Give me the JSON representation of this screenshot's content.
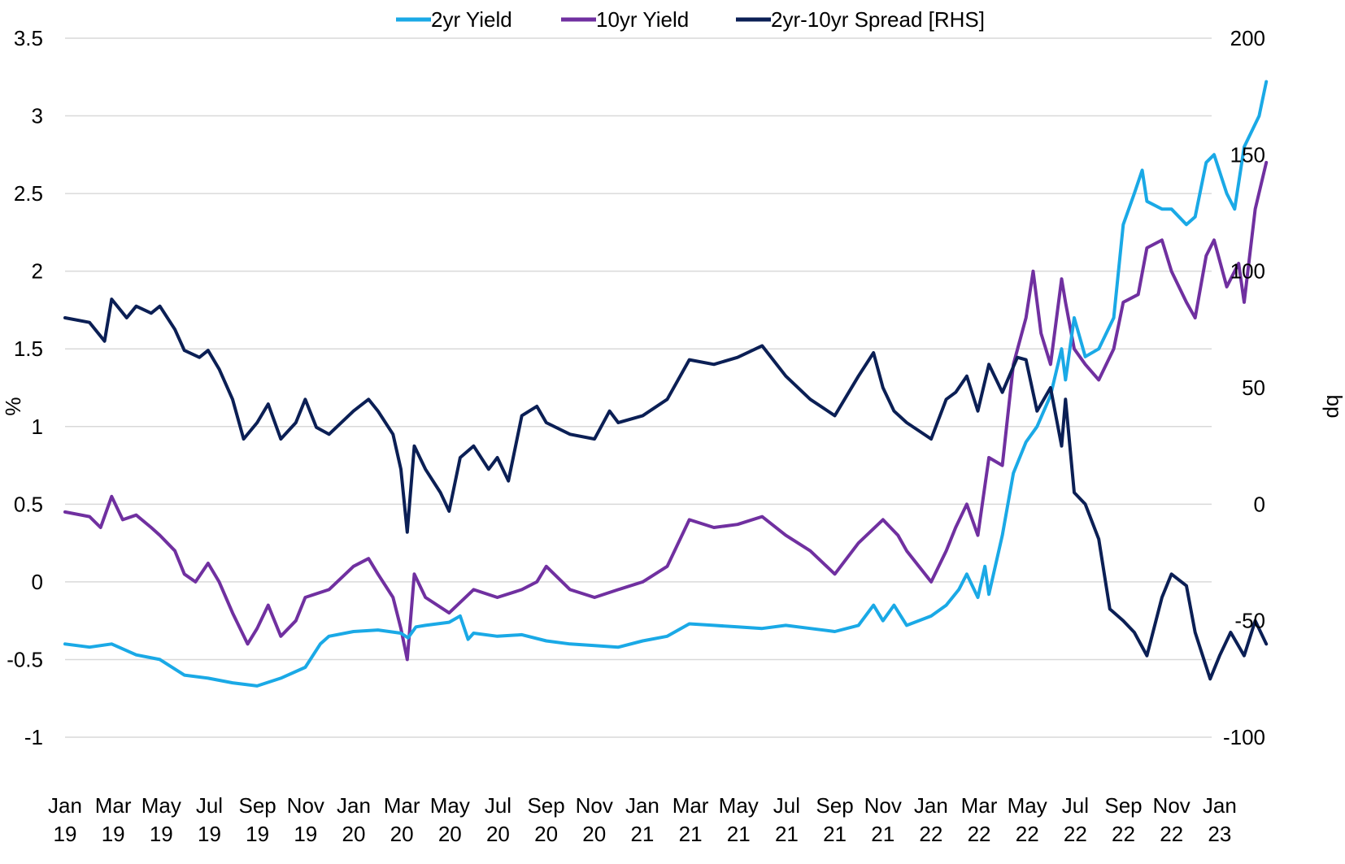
{
  "chart_data": {
    "type": "line",
    "legend": {
      "placement": "top-center",
      "items": [
        {
          "name": "2yr Yield",
          "color": "#1aa9e6"
        },
        {
          "name": "10yr Yield",
          "color": "#7030a0"
        },
        {
          "name": "2yr-10yr Spread [RHS]",
          "color": "#0b1f55"
        }
      ]
    },
    "y_left": {
      "label": "%",
      "min": -1,
      "max": 3.5,
      "ticks": [
        "3.5",
        "3",
        "2.5",
        "2",
        "1.5",
        "1",
        "0.5",
        "0",
        "-0.5",
        "-1"
      ]
    },
    "y_right": {
      "label": "bp",
      "min": -100,
      "max": 200,
      "ticks": [
        "200",
        "150",
        "100",
        "50",
        "0",
        "-50",
        "-100"
      ]
    },
    "x": {
      "start": "2019-01",
      "end": "2023-03",
      "ticks": [
        {
          "month": "Jan",
          "year": "19"
        },
        {
          "month": "Mar",
          "year": "19"
        },
        {
          "month": "May",
          "year": "19"
        },
        {
          "month": "Jul",
          "year": "19"
        },
        {
          "month": "Sep",
          "year": "19"
        },
        {
          "month": "Nov",
          "year": "19"
        },
        {
          "month": "Jan",
          "year": "20"
        },
        {
          "month": "Mar",
          "year": "20"
        },
        {
          "month": "May",
          "year": "20"
        },
        {
          "month": "Jul",
          "year": "20"
        },
        {
          "month": "Sep",
          "year": "20"
        },
        {
          "month": "Nov",
          "year": "20"
        },
        {
          "month": "Jan",
          "year": "21"
        },
        {
          "month": "Mar",
          "year": "21"
        },
        {
          "month": "May",
          "year": "21"
        },
        {
          "month": "Jul",
          "year": "21"
        },
        {
          "month": "Sep",
          "year": "21"
        },
        {
          "month": "Nov",
          "year": "21"
        },
        {
          "month": "Jan",
          "year": "22"
        },
        {
          "month": "Mar",
          "year": "22"
        },
        {
          "month": "May",
          "year": "22"
        },
        {
          "month": "Jul",
          "year": "22"
        },
        {
          "month": "Sep",
          "year": "22"
        },
        {
          "month": "Nov",
          "year": "22"
        },
        {
          "month": "Jan",
          "year": "23"
        }
      ]
    },
    "grid": "horizontal",
    "series": [
      {
        "name": "2yr Yield",
        "axis": "left",
        "color": "#1aa9e6",
        "points": [
          [
            "2019-01-01",
            -0.4
          ],
          [
            "2019-02-01",
            -0.42
          ],
          [
            "2019-03-01",
            -0.4
          ],
          [
            "2019-04-01",
            -0.47
          ],
          [
            "2019-05-01",
            -0.5
          ],
          [
            "2019-06-01",
            -0.6
          ],
          [
            "2019-07-01",
            -0.62
          ],
          [
            "2019-08-01",
            -0.65
          ],
          [
            "2019-09-01",
            -0.67
          ],
          [
            "2019-10-01",
            -0.62
          ],
          [
            "2019-11-01",
            -0.55
          ],
          [
            "2019-11-20",
            -0.4
          ],
          [
            "2019-12-01",
            -0.35
          ],
          [
            "2020-01-01",
            -0.32
          ],
          [
            "2020-02-01",
            -0.31
          ],
          [
            "2020-03-01",
            -0.33
          ],
          [
            "2020-03-10",
            -0.36
          ],
          [
            "2020-03-20",
            -0.29
          ],
          [
            "2020-04-01",
            -0.28
          ],
          [
            "2020-05-01",
            -0.26
          ],
          [
            "2020-05-15",
            -0.22
          ],
          [
            "2020-05-25",
            -0.37
          ],
          [
            "2020-06-01",
            -0.33
          ],
          [
            "2020-07-01",
            -0.35
          ],
          [
            "2020-08-01",
            -0.34
          ],
          [
            "2020-09-01",
            -0.38
          ],
          [
            "2020-10-01",
            -0.4
          ],
          [
            "2020-11-01",
            -0.41
          ],
          [
            "2020-12-01",
            -0.42
          ],
          [
            "2021-01-01",
            -0.38
          ],
          [
            "2021-02-01",
            -0.35
          ],
          [
            "2021-03-01",
            -0.27
          ],
          [
            "2021-04-01",
            -0.28
          ],
          [
            "2021-05-01",
            -0.29
          ],
          [
            "2021-06-01",
            -0.3
          ],
          [
            "2021-07-01",
            -0.28
          ],
          [
            "2021-08-01",
            -0.3
          ],
          [
            "2021-09-01",
            -0.32
          ],
          [
            "2021-10-01",
            -0.28
          ],
          [
            "2021-10-20",
            -0.15
          ],
          [
            "2021-11-01",
            -0.25
          ],
          [
            "2021-11-15",
            -0.15
          ],
          [
            "2021-12-01",
            -0.28
          ],
          [
            "2022-01-01",
            -0.22
          ],
          [
            "2022-01-20",
            -0.15
          ],
          [
            "2022-02-05",
            -0.05
          ],
          [
            "2022-02-15",
            0.05
          ],
          [
            "2022-03-01",
            -0.1
          ],
          [
            "2022-03-10",
            0.1
          ],
          [
            "2022-03-15",
            -0.08
          ],
          [
            "2022-04-01",
            0.3
          ],
          [
            "2022-04-15",
            0.7
          ],
          [
            "2022-05-01",
            0.9
          ],
          [
            "2022-05-15",
            1.0
          ],
          [
            "2022-06-01",
            1.2
          ],
          [
            "2022-06-15",
            1.5
          ],
          [
            "2022-06-20",
            1.3
          ],
          [
            "2022-07-01",
            1.7
          ],
          [
            "2022-07-15",
            1.45
          ],
          [
            "2022-08-01",
            1.5
          ],
          [
            "2022-08-20",
            1.7
          ],
          [
            "2022-09-01",
            2.3
          ],
          [
            "2022-09-15",
            2.5
          ],
          [
            "2022-09-25",
            2.65
          ],
          [
            "2022-10-01",
            2.45
          ],
          [
            "2022-10-20",
            2.4
          ],
          [
            "2022-11-01",
            2.4
          ],
          [
            "2022-11-20",
            2.3
          ],
          [
            "2022-12-01",
            2.35
          ],
          [
            "2022-12-15",
            2.7
          ],
          [
            "2022-12-25",
            2.75
          ],
          [
            "2023-01-10",
            2.5
          ],
          [
            "2023-01-20",
            2.4
          ],
          [
            "2023-02-01",
            2.8
          ],
          [
            "2023-02-20",
            3.0
          ],
          [
            "2023-03-01",
            3.22
          ]
        ]
      },
      {
        "name": "10yr Yield",
        "axis": "left",
        "color": "#7030a0",
        "points": [
          [
            "2019-01-01",
            0.45
          ],
          [
            "2019-02-01",
            0.42
          ],
          [
            "2019-02-15",
            0.35
          ],
          [
            "2019-03-01",
            0.55
          ],
          [
            "2019-03-15",
            0.4
          ],
          [
            "2019-04-01",
            0.43
          ],
          [
            "2019-04-20",
            0.35
          ],
          [
            "2019-05-01",
            0.3
          ],
          [
            "2019-05-20",
            0.2
          ],
          [
            "2019-06-01",
            0.05
          ],
          [
            "2019-06-15",
            0.0
          ],
          [
            "2019-07-01",
            0.12
          ],
          [
            "2019-07-15",
            0.0
          ],
          [
            "2019-08-01",
            -0.2
          ],
          [
            "2019-08-20",
            -0.4
          ],
          [
            "2019-09-01",
            -0.3
          ],
          [
            "2019-09-15",
            -0.15
          ],
          [
            "2019-10-01",
            -0.35
          ],
          [
            "2019-10-20",
            -0.25
          ],
          [
            "2019-11-01",
            -0.1
          ],
          [
            "2019-12-01",
            -0.05
          ],
          [
            "2020-01-01",
            0.1
          ],
          [
            "2020-01-20",
            0.15
          ],
          [
            "2020-02-01",
            0.05
          ],
          [
            "2020-02-20",
            -0.1
          ],
          [
            "2020-03-01",
            -0.3
          ],
          [
            "2020-03-09",
            -0.5
          ],
          [
            "2020-03-18",
            0.05
          ],
          [
            "2020-04-01",
            -0.1
          ],
          [
            "2020-05-01",
            -0.2
          ],
          [
            "2020-06-01",
            -0.05
          ],
          [
            "2020-07-01",
            -0.1
          ],
          [
            "2020-08-01",
            -0.05
          ],
          [
            "2020-08-20",
            0.0
          ],
          [
            "2020-09-01",
            0.1
          ],
          [
            "2020-10-01",
            -0.05
          ],
          [
            "2020-11-01",
            -0.1
          ],
          [
            "2020-12-01",
            -0.05
          ],
          [
            "2021-01-01",
            0.0
          ],
          [
            "2021-02-01",
            0.1
          ],
          [
            "2021-03-01",
            0.4
          ],
          [
            "2021-04-01",
            0.35
          ],
          [
            "2021-05-01",
            0.37
          ],
          [
            "2021-06-01",
            0.42
          ],
          [
            "2021-07-01",
            0.3
          ],
          [
            "2021-08-01",
            0.2
          ],
          [
            "2021-09-01",
            0.05
          ],
          [
            "2021-10-01",
            0.25
          ],
          [
            "2021-11-01",
            0.4
          ],
          [
            "2021-11-20",
            0.3
          ],
          [
            "2021-12-01",
            0.2
          ],
          [
            "2022-01-01",
            0.0
          ],
          [
            "2022-01-20",
            0.2
          ],
          [
            "2022-02-01",
            0.35
          ],
          [
            "2022-02-15",
            0.5
          ],
          [
            "2022-03-01",
            0.3
          ],
          [
            "2022-03-15",
            0.8
          ],
          [
            "2022-04-01",
            0.75
          ],
          [
            "2022-04-15",
            1.4
          ],
          [
            "2022-05-01",
            1.7
          ],
          [
            "2022-05-10",
            2.0
          ],
          [
            "2022-05-20",
            1.6
          ],
          [
            "2022-06-01",
            1.4
          ],
          [
            "2022-06-15",
            1.95
          ],
          [
            "2022-06-20",
            1.8
          ],
          [
            "2022-07-01",
            1.5
          ],
          [
            "2022-07-15",
            1.4
          ],
          [
            "2022-08-01",
            1.3
          ],
          [
            "2022-08-20",
            1.5
          ],
          [
            "2022-09-01",
            1.8
          ],
          [
            "2022-09-20",
            1.85
          ],
          [
            "2022-10-01",
            2.15
          ],
          [
            "2022-10-20",
            2.2
          ],
          [
            "2022-11-01",
            2.0
          ],
          [
            "2022-11-20",
            1.8
          ],
          [
            "2022-12-01",
            1.7
          ],
          [
            "2022-12-15",
            2.1
          ],
          [
            "2022-12-25",
            2.2
          ],
          [
            "2023-01-10",
            1.9
          ],
          [
            "2023-01-25",
            2.05
          ],
          [
            "2023-02-01",
            1.8
          ],
          [
            "2023-02-15",
            2.4
          ],
          [
            "2023-03-01",
            2.7
          ]
        ]
      },
      {
        "name": "2yr-10yr Spread [RHS]",
        "axis": "right",
        "color": "#0b1f55",
        "points": [
          [
            "2019-01-01",
            80
          ],
          [
            "2019-02-01",
            78
          ],
          [
            "2019-02-20",
            70
          ],
          [
            "2019-03-01",
            88
          ],
          [
            "2019-03-20",
            80
          ],
          [
            "2019-04-01",
            85
          ],
          [
            "2019-04-20",
            82
          ],
          [
            "2019-05-01",
            85
          ],
          [
            "2019-05-20",
            75
          ],
          [
            "2019-06-01",
            66
          ],
          [
            "2019-06-20",
            63
          ],
          [
            "2019-07-01",
            66
          ],
          [
            "2019-07-15",
            58
          ],
          [
            "2019-08-01",
            45
          ],
          [
            "2019-08-15",
            28
          ],
          [
            "2019-09-01",
            35
          ],
          [
            "2019-09-15",
            43
          ],
          [
            "2019-10-01",
            28
          ],
          [
            "2019-10-20",
            35
          ],
          [
            "2019-11-01",
            45
          ],
          [
            "2019-11-15",
            33
          ],
          [
            "2019-12-01",
            30
          ],
          [
            "2020-01-01",
            40
          ],
          [
            "2020-01-20",
            45
          ],
          [
            "2020-02-01",
            40
          ],
          [
            "2020-02-20",
            30
          ],
          [
            "2020-03-01",
            15
          ],
          [
            "2020-03-09",
            -12
          ],
          [
            "2020-03-18",
            25
          ],
          [
            "2020-04-01",
            15
          ],
          [
            "2020-04-20",
            5
          ],
          [
            "2020-05-01",
            -3
          ],
          [
            "2020-05-15",
            20
          ],
          [
            "2020-06-01",
            25
          ],
          [
            "2020-06-20",
            15
          ],
          [
            "2020-07-01",
            20
          ],
          [
            "2020-07-15",
            10
          ],
          [
            "2020-08-01",
            38
          ],
          [
            "2020-08-20",
            42
          ],
          [
            "2020-09-01",
            35
          ],
          [
            "2020-10-01",
            30
          ],
          [
            "2020-11-01",
            28
          ],
          [
            "2020-11-20",
            40
          ],
          [
            "2020-12-01",
            35
          ],
          [
            "2021-01-01",
            38
          ],
          [
            "2021-02-01",
            45
          ],
          [
            "2021-03-01",
            62
          ],
          [
            "2021-04-01",
            60
          ],
          [
            "2021-05-01",
            63
          ],
          [
            "2021-06-01",
            68
          ],
          [
            "2021-07-01",
            55
          ],
          [
            "2021-08-01",
            45
          ],
          [
            "2021-09-01",
            38
          ],
          [
            "2021-10-01",
            55
          ],
          [
            "2021-10-20",
            65
          ],
          [
            "2021-11-01",
            50
          ],
          [
            "2021-11-15",
            40
          ],
          [
            "2021-12-01",
            35
          ],
          [
            "2022-01-01",
            28
          ],
          [
            "2022-01-20",
            45
          ],
          [
            "2022-02-01",
            48
          ],
          [
            "2022-02-15",
            55
          ],
          [
            "2022-03-01",
            40
          ],
          [
            "2022-03-15",
            60
          ],
          [
            "2022-04-01",
            48
          ],
          [
            "2022-04-20",
            63
          ],
          [
            "2022-05-01",
            62
          ],
          [
            "2022-05-15",
            40
          ],
          [
            "2022-06-01",
            50
          ],
          [
            "2022-06-15",
            25
          ],
          [
            "2022-06-20",
            45
          ],
          [
            "2022-07-01",
            5
          ],
          [
            "2022-07-15",
            0
          ],
          [
            "2022-08-01",
            -15
          ],
          [
            "2022-08-15",
            -45
          ],
          [
            "2022-09-01",
            -50
          ],
          [
            "2022-09-15",
            -55
          ],
          [
            "2022-10-01",
            -65
          ],
          [
            "2022-10-20",
            -40
          ],
          [
            "2022-11-01",
            -30
          ],
          [
            "2022-11-20",
            -35
          ],
          [
            "2022-12-01",
            -55
          ],
          [
            "2022-12-20",
            -75
          ],
          [
            "2023-01-01",
            -65
          ],
          [
            "2023-01-15",
            -55
          ],
          [
            "2023-02-01",
            -65
          ],
          [
            "2023-02-15",
            -50
          ],
          [
            "2023-03-01",
            -60
          ]
        ]
      }
    ]
  }
}
